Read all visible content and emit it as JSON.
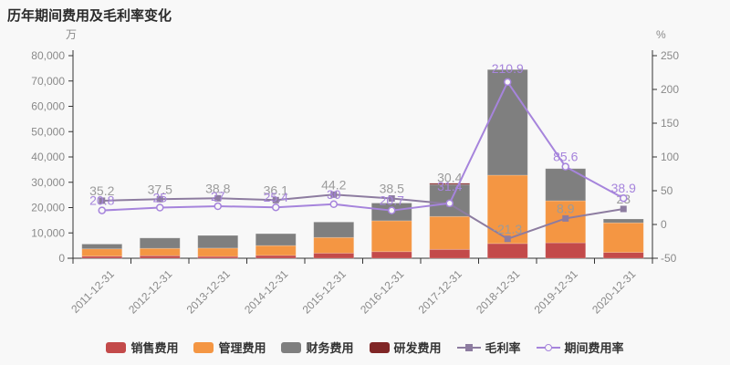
{
  "title": "历年期间费用及毛利率变化",
  "chart_data": {
    "type": "bar",
    "subtype": "stacked-bar-with-lines",
    "title": "历年期间费用及毛利率变化",
    "categories": [
      "2011-12-31",
      "2012-12-31",
      "2013-12-31",
      "2014-12-31",
      "2015-12-31",
      "2016-12-31",
      "2017-12-31",
      "2018-12-31",
      "2019-12-31",
      "2020-12-31"
    ],
    "left_axis": {
      "unit": "万",
      "min": 0,
      "max": 80000,
      "step": 10000
    },
    "right_axis": {
      "unit": "%",
      "min": -50,
      "max": 250,
      "step": 50
    },
    "grid": false,
    "legend_position": "bottom",
    "bar_series": [
      {
        "name": "销售费用",
        "color": "#c34a4a",
        "values": [
          800,
          1000,
          700,
          1100,
          2000,
          2600,
          3500,
          5800,
          6100,
          2300
        ]
      },
      {
        "name": "管理费用",
        "color": "#f49643",
        "values": [
          2900,
          2900,
          3300,
          3900,
          6200,
          12200,
          13000,
          27000,
          16600,
          11700
        ]
      },
      {
        "name": "财务费用",
        "color": "#7f7f7f",
        "values": [
          1900,
          4100,
          5000,
          4700,
          6100,
          7000,
          12600,
          41700,
          12700,
          1500
        ]
      },
      {
        "name": "研发费用",
        "color": "#802626",
        "values": [
          0,
          0,
          0,
          0,
          0,
          0,
          500,
          0,
          0,
          0
        ]
      }
    ],
    "line_series": [
      {
        "name": "毛利率",
        "color": "#8d7ca0",
        "label_color": "#9b9b9b",
        "marker": "square",
        "values": [
          35.2,
          37.5,
          38.8,
          36.1,
          44.2,
          38.5,
          30.4,
          -21.3,
          8.9,
          23
        ],
        "labels": [
          "35.2",
          "37.5",
          "38.8",
          "36.1",
          "44.2",
          "38.5",
          "30.4",
          "-21.3",
          "8.9",
          "23"
        ],
        "label_dy": {
          "6": -24
        }
      },
      {
        "name": "期间费用率",
        "color": "#a684dc",
        "label_color": "#a684dc",
        "marker": "circle",
        "values": [
          20.8,
          25,
          27,
          25.4,
          30,
          20.7,
          31.4,
          210.9,
          85.6,
          38.9
        ],
        "labels": [
          "20.8",
          "25",
          "27",
          "25.4",
          "30",
          "20.7",
          "31.4",
          "210.9",
          "85.6",
          "38.9"
        ],
        "label_dy": {
          "6": -14,
          "7": -10
        }
      }
    ]
  }
}
